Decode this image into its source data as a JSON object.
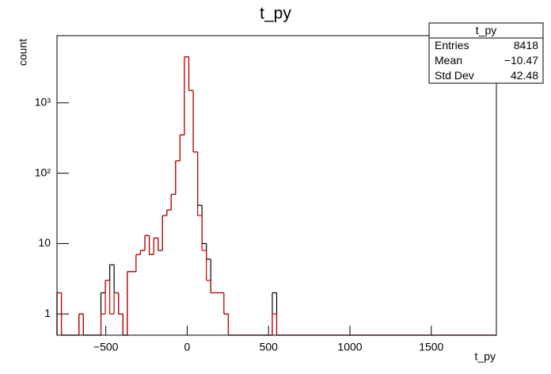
{
  "chart_data": {
    "type": "histogram",
    "title": "t_py",
    "xlabel": "t_py",
    "ylabel": "count",
    "log_y": true,
    "bins": [
      -800,
      -773,
      -746,
      -719,
      -692,
      -665,
      -638,
      -611,
      -584,
      -557,
      -530,
      -503,
      -476,
      -449,
      -422,
      -395,
      -368,
      -341,
      -314,
      -287,
      -260,
      -233,
      -206,
      -179,
      -152,
      -125,
      -98,
      -71,
      -44,
      -17,
      10,
      37,
      64,
      91,
      118,
      145,
      172,
      199,
      226,
      253,
      280,
      307,
      334,
      361,
      388,
      415,
      442,
      469,
      496,
      523,
      550,
      577,
      604,
      631,
      658,
      685,
      712,
      739,
      766,
      793,
      820,
      847,
      874,
      901,
      928,
      955,
      982,
      1009,
      1036,
      1063,
      1090,
      1117,
      1144,
      1171,
      1198,
      1225,
      1252,
      1279,
      1306,
      1333,
      1360,
      1387,
      1414,
      1441,
      1468,
      1495,
      1522,
      1549,
      1576,
      1603,
      1630,
      1657,
      1684,
      1711,
      1738,
      1765,
      1792,
      1819,
      1846,
      1873,
      1900
    ],
    "series": [
      {
        "color": "#000000",
        "values": [
          2,
          0,
          0,
          0,
          0,
          1,
          0,
          0,
          0,
          0,
          2,
          3,
          5,
          2,
          1,
          0,
          4,
          4,
          7,
          8,
          13,
          7,
          12,
          8,
          25,
          30,
          50,
          150,
          350,
          4500,
          1500,
          200,
          35,
          10,
          6,
          2,
          2,
          2,
          1,
          0,
          0,
          0,
          0,
          0,
          0,
          0,
          0,
          0,
          0,
          2,
          0,
          0,
          0,
          0,
          0,
          0,
          0,
          0,
          0,
          0,
          0,
          0,
          0,
          0,
          0,
          0,
          0,
          0,
          0,
          0,
          0,
          0,
          0,
          0,
          0,
          0,
          0,
          0,
          0,
          0,
          0,
          0,
          0,
          0,
          0,
          0,
          0,
          0,
          0,
          0,
          0,
          0,
          0,
          0,
          0,
          0,
          0,
          0,
          0,
          0
        ]
      },
      {
        "color": "#cc0000",
        "values": [
          2,
          0,
          0,
          0,
          0,
          1,
          0,
          0,
          0,
          0,
          1,
          3,
          1,
          2,
          1,
          0,
          4,
          4,
          7,
          8,
          13,
          7,
          12,
          8,
          25,
          30,
          50,
          150,
          350,
          4500,
          1500,
          200,
          25,
          8,
          3,
          2,
          2,
          2,
          1,
          0,
          0,
          0,
          0,
          0,
          0,
          0,
          0,
          0,
          0,
          1,
          0,
          0,
          0,
          0,
          0,
          0,
          0,
          0,
          0,
          0,
          0,
          0,
          0,
          0,
          0,
          0,
          0,
          0,
          0,
          0,
          0,
          0,
          0,
          0,
          0,
          0,
          0,
          0,
          0,
          0,
          0,
          0,
          0,
          0,
          0,
          0,
          0,
          0,
          0,
          0,
          0,
          0,
          0,
          0,
          0,
          0,
          0,
          0,
          0,
          0
        ]
      }
    ],
    "xlim": [
      -800,
      1900
    ],
    "ylim": [
      0.5,
      9000
    ],
    "xticks": [
      {
        "value": -500,
        "label": "−500"
      },
      0,
      500,
      1000,
      1500
    ],
    "yticks": [
      1,
      10,
      {
        "value": 100,
        "label": "10²"
      },
      {
        "value": 1000,
        "label": "10³"
      }
    ],
    "stats": {
      "title": "t_py",
      "rows": [
        {
          "name": "Entries",
          "value": "8418"
        },
        {
          "name": "Mean",
          "value": "−10.47"
        },
        {
          "name": "Std Dev",
          "value": "42.48"
        }
      ]
    }
  }
}
